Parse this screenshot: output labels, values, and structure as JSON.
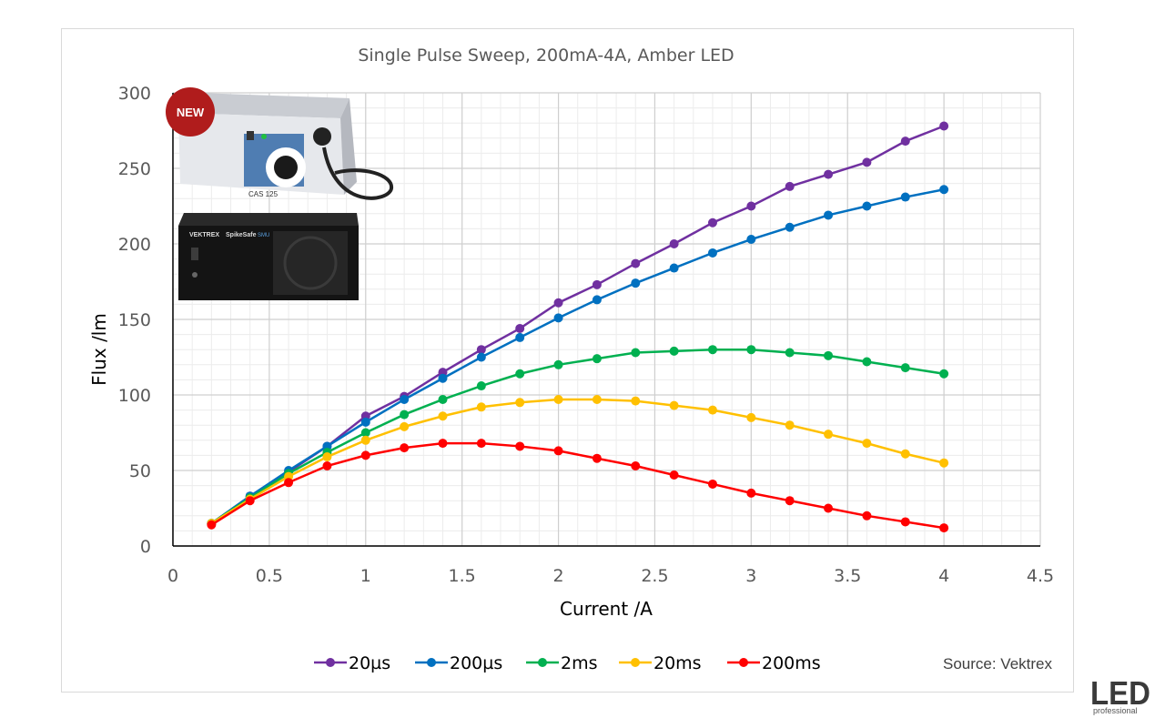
{
  "chart_data": {
    "type": "line",
    "title": "Single Pulse Sweep, 200mA-4A, Amber LED",
    "xlabel": "Current /A",
    "ylabel": "Flux /lm",
    "xlim": [
      0,
      4.5
    ],
    "ylim": [
      0,
      300
    ],
    "x_ticks": [
      "0",
      "0.5",
      "1",
      "1.5",
      "2",
      "2.5",
      "3",
      "3.5",
      "4",
      "4.5"
    ],
    "y_ticks": [
      "0",
      "50",
      "100",
      "150",
      "200",
      "250",
      "300"
    ],
    "grid": true,
    "legend_position": "bottom",
    "x": [
      0.2,
      0.4,
      0.6,
      0.8,
      1.0,
      1.2,
      1.4,
      1.6,
      1.8,
      2.0,
      2.2,
      2.4,
      2.6,
      2.8,
      3.0,
      3.2,
      3.4,
      3.6,
      3.8,
      4.0
    ],
    "series": [
      {
        "name": "20µs",
        "color": "#7030a0",
        "values": [
          15,
          33,
          49,
          66,
          86,
          99,
          115,
          130,
          144,
          161,
          173,
          187,
          200,
          214,
          225,
          238,
          246,
          254,
          268,
          278
        ]
      },
      {
        "name": "200µs",
        "color": "#0070c0",
        "values": [
          15,
          33,
          50,
          66,
          82,
          97,
          111,
          125,
          138,
          151,
          163,
          174,
          184,
          194,
          203,
          211,
          219,
          225,
          231,
          236
        ]
      },
      {
        "name": "2ms",
        "color": "#00b050",
        "values": [
          15,
          32,
          48,
          62,
          75,
          87,
          97,
          106,
          114,
          120,
          124,
          128,
          129,
          130,
          130,
          128,
          126,
          122,
          118,
          114
        ]
      },
      {
        "name": "20ms",
        "color": "#ffc000",
        "values": [
          15,
          31,
          46,
          59,
          70,
          79,
          86,
          92,
          95,
          97,
          97,
          96,
          93,
          90,
          85,
          80,
          74,
          68,
          61,
          55
        ]
      },
      {
        "name": "200ms",
        "color": "#ff0000",
        "values": [
          14,
          30,
          42,
          53,
          60,
          65,
          68,
          68,
          66,
          63,
          58,
          53,
          47,
          41,
          35,
          30,
          25,
          20,
          16,
          12
        ]
      }
    ],
    "annotation": "Source: Vektrex"
  },
  "inset": {
    "badge": "NEW",
    "top_device_label": "CAS 125",
    "bottom_brand": "VEKTREX",
    "bottom_model": "SpikeSafe",
    "bottom_model_suffix": "SMU"
  },
  "brand_logo": {
    "main": "LED",
    "sub": "professional"
  }
}
